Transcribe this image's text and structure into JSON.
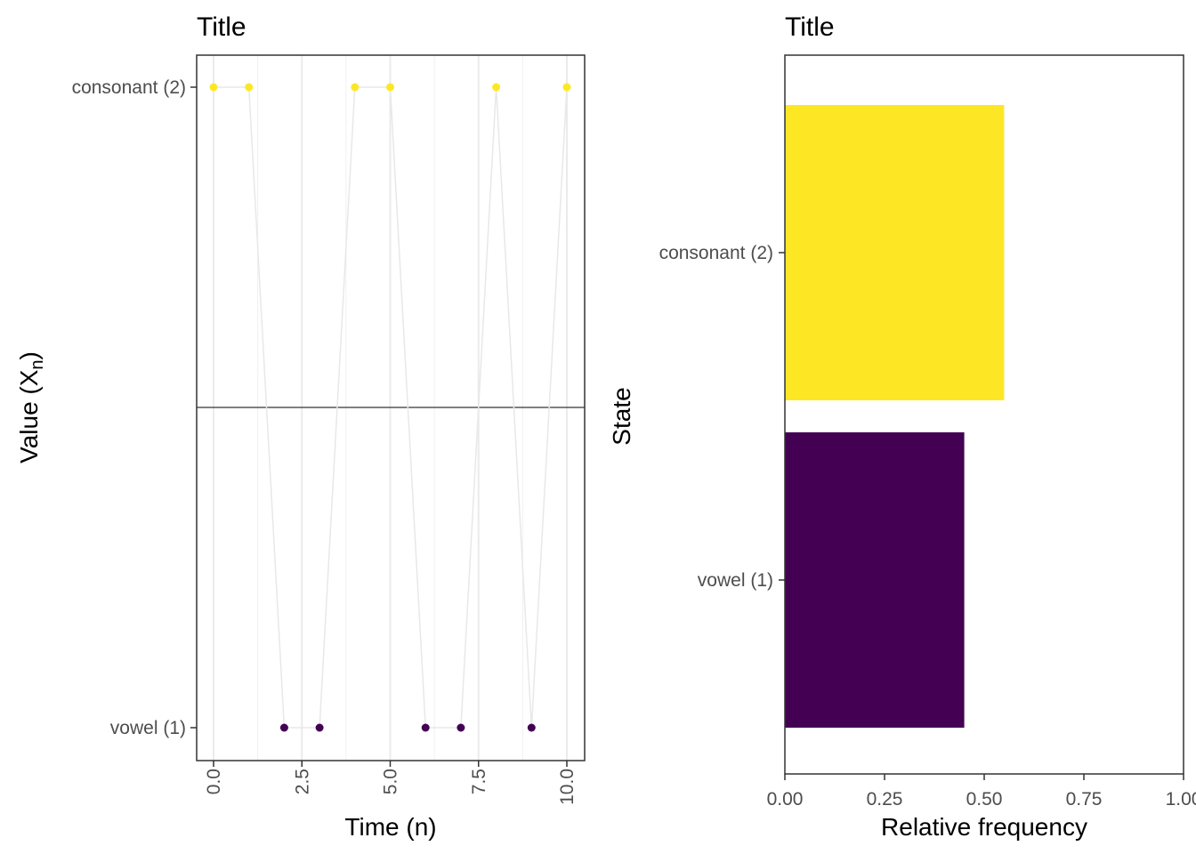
{
  "chart_data": [
    {
      "type": "line",
      "title": "Title",
      "xlabel": "Time (n)",
      "ylabel": "Value (X",
      "ylabel_subscript": "n",
      "ylabel_close": ")",
      "xlim": [
        0,
        10
      ],
      "xticks": [
        "0.0",
        "2.5",
        "5.0",
        "7.5",
        "10.0"
      ],
      "xtick_values": [
        0,
        2.5,
        5,
        7.5,
        10
      ],
      "yticks": [
        "consonant (2)",
        "vowel (1)"
      ],
      "grid": true,
      "x": [
        0,
        1,
        2,
        3,
        4,
        5,
        6,
        7,
        8,
        9,
        10
      ],
      "y": [
        "consonant (2)",
        "consonant (2)",
        "vowel (1)",
        "vowel (1)",
        "consonant (2)",
        "consonant (2)",
        "vowel (1)",
        "vowel (1)",
        "consonant (2)",
        "vowel (1)",
        "consonant (2)"
      ],
      "colors": {
        "consonant (2)": "#FDE725",
        "vowel (1)": "#440154",
        "line": "#e8e8e8"
      }
    },
    {
      "type": "bar",
      "orientation": "horizontal",
      "title": "Title",
      "xlabel": "Relative frequency",
      "ylabel": "State",
      "categories": [
        "consonant (2)",
        "vowel (1)"
      ],
      "values": [
        0.55,
        0.45
      ],
      "colors": [
        "#FDE725",
        "#440154"
      ],
      "xlim": [
        0,
        1
      ],
      "xticks": [
        "0.00",
        "0.25",
        "0.50",
        "0.75",
        "1.00"
      ],
      "xtick_values": [
        0,
        0.25,
        0.5,
        0.75,
        1
      ],
      "grid": false
    }
  ]
}
